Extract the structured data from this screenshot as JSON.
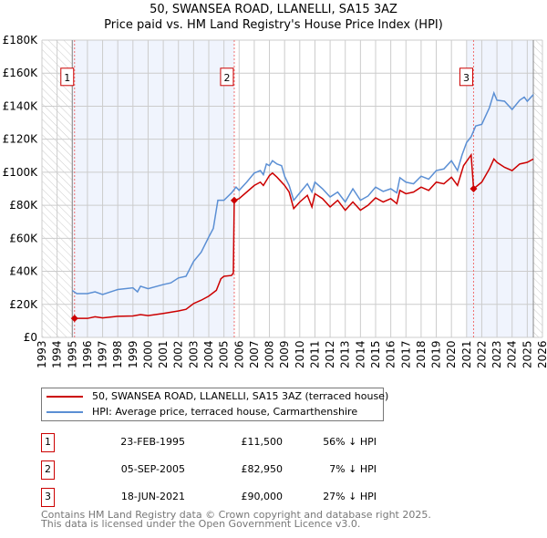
{
  "chart_data": {
    "type": "line",
    "title": "50, SWANSEA ROAD, LLANELLI, SA15 3AZ",
    "subtitle": "Price paid vs. HM Land Registry's House Price Index (HPI)",
    "xlim": [
      1993,
      2026
    ],
    "ylim": [
      0,
      180000
    ],
    "x_ticks": [
      "1993",
      "1994",
      "1995",
      "1996",
      "1997",
      "1998",
      "1999",
      "2000",
      "2001",
      "2002",
      "2003",
      "2004",
      "2005",
      "2006",
      "2007",
      "2008",
      "2009",
      "2010",
      "2011",
      "2012",
      "2013",
      "2014",
      "2015",
      "2016",
      "2017",
      "2018",
      "2019",
      "2020",
      "2021",
      "2022",
      "2023",
      "2024",
      "2025",
      "2026"
    ],
    "y_ticks": [
      {
        "value": 0,
        "label": "£0"
      },
      {
        "value": 20000,
        "label": "£20K"
      },
      {
        "value": 40000,
        "label": "£40K"
      },
      {
        "value": 60000,
        "label": "£60K"
      },
      {
        "value": 80000,
        "label": "£80K"
      },
      {
        "value": 100000,
        "label": "£100K"
      },
      {
        "value": 120000,
        "label": "£120K"
      },
      {
        "value": 140000,
        "label": "£140K"
      },
      {
        "value": 160000,
        "label": "£160K"
      },
      {
        "value": 180000,
        "label": "£180K"
      }
    ],
    "grid": true,
    "hatched_ranges": [
      [
        1993,
        1995.0
      ],
      [
        2025.4,
        2026
      ]
    ],
    "shaded_ranges": [
      [
        1995.0,
        2005.68
      ],
      [
        2021.0,
        2025.4
      ]
    ],
    "series": [
      {
        "name": "50, SWANSEA ROAD, LLANELLI, SA15 3AZ (terraced house)",
        "color": "#cc0000",
        "points": [
          [
            1995.15,
            11500
          ],
          [
            1996,
            11500
          ],
          [
            1996.5,
            12500
          ],
          [
            1997,
            11800
          ],
          [
            1998,
            12800
          ],
          [
            1999,
            13000
          ],
          [
            1999.5,
            13800
          ],
          [
            2000,
            13200
          ],
          [
            2001,
            14500
          ],
          [
            2002,
            16000
          ],
          [
            2002.5,
            17000
          ],
          [
            2003,
            20500
          ],
          [
            2003.5,
            22500
          ],
          [
            2004,
            25000
          ],
          [
            2004.5,
            28500
          ],
          [
            2004.8,
            35500
          ],
          [
            2005,
            37000
          ],
          [
            2005.5,
            37500
          ],
          [
            2005.62,
            39000
          ],
          [
            2005.68,
            82950
          ],
          [
            2006,
            84000
          ],
          [
            2006.5,
            88000
          ],
          [
            2007,
            92000
          ],
          [
            2007.4,
            94000
          ],
          [
            2007.6,
            92000
          ],
          [
            2008,
            98000
          ],
          [
            2008.2,
            99500
          ],
          [
            2008.5,
            97000
          ],
          [
            2009,
            92000
          ],
          [
            2009.3,
            88000
          ],
          [
            2009.6,
            78000
          ],
          [
            2010,
            82000
          ],
          [
            2010.5,
            86000
          ],
          [
            2010.8,
            79000
          ],
          [
            2011,
            87000
          ],
          [
            2011.5,
            84000
          ],
          [
            2012,
            79000
          ],
          [
            2012.5,
            83000
          ],
          [
            2013,
            77000
          ],
          [
            2013.5,
            82000
          ],
          [
            2014,
            77000
          ],
          [
            2014.5,
            80000
          ],
          [
            2015,
            84500
          ],
          [
            2015.5,
            82000
          ],
          [
            2016,
            84000
          ],
          [
            2016.4,
            81000
          ],
          [
            2016.6,
            89000
          ],
          [
            2017,
            87000
          ],
          [
            2017.5,
            88000
          ],
          [
            2018,
            91000
          ],
          [
            2018.5,
            89000
          ],
          [
            2019,
            94000
          ],
          [
            2019.5,
            93000
          ],
          [
            2020,
            97000
          ],
          [
            2020.4,
            92000
          ],
          [
            2020.8,
            104000
          ],
          [
            2021.3,
            110500
          ],
          [
            2021.46,
            90000
          ],
          [
            2022,
            94000
          ],
          [
            2022.5,
            102000
          ],
          [
            2022.8,
            108000
          ],
          [
            2023,
            106000
          ],
          [
            2023.5,
            103000
          ],
          [
            2024,
            101000
          ],
          [
            2024.5,
            105000
          ],
          [
            2025,
            106000
          ],
          [
            2025.4,
            108000
          ]
        ]
      },
      {
        "name": "HPI: Average price, terraced house, Carmarthenshire",
        "color": "#5b8fd4",
        "points": [
          [
            1995,
            28400
          ],
          [
            1995.3,
            26500
          ],
          [
            1996,
            26500
          ],
          [
            1996.5,
            27600
          ],
          [
            1997,
            26000
          ],
          [
            1998,
            29000
          ],
          [
            1999,
            30000
          ],
          [
            1999.3,
            27600
          ],
          [
            1999.5,
            31000
          ],
          [
            2000,
            29500
          ],
          [
            2001,
            32000
          ],
          [
            2001.5,
            33000
          ],
          [
            2002,
            36000
          ],
          [
            2002.5,
            37000
          ],
          [
            2003,
            46000
          ],
          [
            2003.5,
            51600
          ],
          [
            2004,
            60800
          ],
          [
            2004.3,
            66000
          ],
          [
            2004.6,
            83000
          ],
          [
            2005,
            83000
          ],
          [
            2005.5,
            87500
          ],
          [
            2005.8,
            91000
          ],
          [
            2006,
            89000
          ],
          [
            2006.5,
            94000
          ],
          [
            2007,
            99500
          ],
          [
            2007.4,
            101000
          ],
          [
            2007.6,
            98500
          ],
          [
            2007.8,
            105000
          ],
          [
            2008,
            104000
          ],
          [
            2008.2,
            107000
          ],
          [
            2008.5,
            105000
          ],
          [
            2008.8,
            104000
          ],
          [
            2009,
            97600
          ],
          [
            2009.3,
            92000
          ],
          [
            2009.6,
            83000
          ],
          [
            2010,
            87500
          ],
          [
            2010.5,
            93000
          ],
          [
            2010.8,
            88000
          ],
          [
            2011,
            94000
          ],
          [
            2011.5,
            90000
          ],
          [
            2012,
            85000
          ],
          [
            2012.5,
            88000
          ],
          [
            2013,
            82000
          ],
          [
            2013.5,
            90000
          ],
          [
            2014,
            83000
          ],
          [
            2014.5,
            85600
          ],
          [
            2015,
            91000
          ],
          [
            2015.5,
            88400
          ],
          [
            2016,
            90000
          ],
          [
            2016.4,
            87500
          ],
          [
            2016.6,
            96700
          ],
          [
            2017,
            94000
          ],
          [
            2017.5,
            93000
          ],
          [
            2018,
            97600
          ],
          [
            2018.5,
            95800
          ],
          [
            2019,
            101000
          ],
          [
            2019.5,
            102000
          ],
          [
            2020,
            107000
          ],
          [
            2020.4,
            101000
          ],
          [
            2020.7,
            110500
          ],
          [
            2021,
            118000
          ],
          [
            2021.3,
            121500
          ],
          [
            2021.6,
            128000
          ],
          [
            2022,
            129000
          ],
          [
            2022.5,
            139000
          ],
          [
            2022.8,
            148000
          ],
          [
            2023,
            143600
          ],
          [
            2023.5,
            143000
          ],
          [
            2024,
            138000
          ],
          [
            2024.5,
            143600
          ],
          [
            2024.8,
            145500
          ],
          [
            2025,
            143000
          ],
          [
            2025.4,
            147000
          ]
        ]
      }
    ],
    "sales": [
      {
        "num": "1",
        "x": 1995.15,
        "price": 11500
      },
      {
        "num": "2",
        "x": 2005.68,
        "price": 82950
      },
      {
        "num": "3",
        "x": 2021.46,
        "price": 90000
      }
    ]
  },
  "legend": {
    "property": "50, SWANSEA ROAD, LLANELLI, SA15 3AZ (terraced house)",
    "hpi": "HPI: Average price, terraced house, Carmarthenshire"
  },
  "sales_table": [
    {
      "num": "1",
      "date": "23-FEB-1995",
      "price": "£11,500",
      "hpi": "56% ↓ HPI"
    },
    {
      "num": "2",
      "date": "05-SEP-2005",
      "price": "£82,950",
      "hpi": "7% ↓ HPI"
    },
    {
      "num": "3",
      "date": "18-JUN-2021",
      "price": "£90,000",
      "hpi": "27% ↓ HPI"
    }
  ],
  "footer": {
    "line1": "Contains HM Land Registry data © Crown copyright and database right 2025.",
    "line2": "This data is licensed under the Open Government Licence v3.0."
  }
}
